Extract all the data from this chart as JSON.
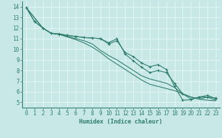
{
  "xlabel": "Humidex (Indice chaleur)",
  "ylabel": "",
  "xlim": [
    -0.5,
    23.5
  ],
  "ylim": [
    4.5,
    14.5
  ],
  "yticks": [
    5,
    6,
    7,
    8,
    9,
    10,
    11,
    12,
    13,
    14
  ],
  "xticks": [
    0,
    1,
    2,
    3,
    4,
    5,
    6,
    7,
    8,
    9,
    10,
    11,
    12,
    13,
    14,
    15,
    16,
    17,
    18,
    19,
    20,
    21,
    22,
    23
  ],
  "bg_color": "#c8e8e8",
  "grid_color": "#e8f8f8",
  "line_color": "#2e7d6e",
  "lines": [
    {
      "x": [
        0,
        1,
        2,
        3,
        4,
        5,
        6,
        7,
        8,
        9,
        10,
        11,
        12,
        13,
        14,
        15,
        16,
        17,
        18,
        19,
        20,
        21,
        22,
        23
      ],
      "y": [
        13.9,
        12.6,
        12.0,
        11.5,
        11.4,
        11.3,
        11.2,
        11.1,
        11.05,
        11.0,
        10.5,
        10.8,
        9.7,
        9.3,
        8.7,
        8.35,
        8.55,
        8.1,
        6.5,
        5.2,
        5.25,
        5.5,
        5.5,
        5.4
      ],
      "marker": true
    },
    {
      "x": [
        0,
        1,
        2,
        3,
        4,
        5,
        6,
        7,
        8,
        9,
        10,
        11,
        12,
        13,
        14,
        15,
        16,
        17,
        18,
        19,
        20,
        21,
        22,
        23
      ],
      "y": [
        13.9,
        12.6,
        12.0,
        11.5,
        11.45,
        11.3,
        11.2,
        11.1,
        11.05,
        11.0,
        10.6,
        11.0,
        9.55,
        8.9,
        8.3,
        7.8,
        8.0,
        7.8,
        6.8,
        5.8,
        5.3,
        5.5,
        5.65,
        5.35
      ],
      "marker": true
    },
    {
      "x": [
        0,
        2,
        3,
        4,
        5,
        6,
        7,
        8,
        9,
        10,
        11,
        12,
        13,
        14,
        15,
        16,
        17,
        18,
        19,
        20,
        21,
        22,
        23
      ],
      "y": [
        13.9,
        12.0,
        11.5,
        11.4,
        11.2,
        11.0,
        10.8,
        10.5,
        9.9,
        9.4,
        9.0,
        8.5,
        8.0,
        7.5,
        7.2,
        7.0,
        6.8,
        6.4,
        5.8,
        5.5,
        5.3,
        5.5,
        5.2
      ],
      "marker": false
    },
    {
      "x": [
        0,
        2,
        3,
        4,
        5,
        6,
        7,
        8,
        9,
        10,
        11,
        12,
        13,
        14,
        15,
        16,
        17,
        18,
        19,
        20,
        21,
        22,
        23
      ],
      "y": [
        13.9,
        12.0,
        11.5,
        11.4,
        11.15,
        10.9,
        10.6,
        10.2,
        9.7,
        9.1,
        8.6,
        8.1,
        7.6,
        7.1,
        6.7,
        6.5,
        6.3,
        6.1,
        5.8,
        5.5,
        5.3,
        5.2,
        5.15
      ],
      "marker": false
    }
  ],
  "line_width": 0.8,
  "markersize": 3.0,
  "xlabel_fontsize": 6,
  "tick_fontsize": 5.5
}
